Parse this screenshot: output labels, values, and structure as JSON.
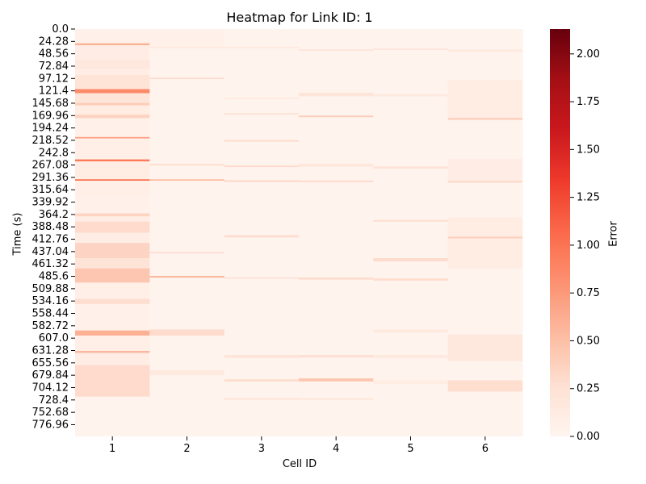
{
  "chart_data": {
    "type": "heatmap",
    "title": "Heatmap for Link ID: 1",
    "xlabel": "Cell ID",
    "ylabel": "Time (s)",
    "colorbar_label": "Error",
    "colormap": "Reds",
    "color_low": "#fff5f0",
    "color_high": "#67000d",
    "vmin": 0.0,
    "vmax": 2.13,
    "colorbar_ticks": [
      "0.00",
      "0.25",
      "0.50",
      "0.75",
      "1.00",
      "1.25",
      "1.50",
      "1.75",
      "2.00"
    ],
    "colorbar_tick_values": [
      0.0,
      0.25,
      0.5,
      0.75,
      1.0,
      1.25,
      1.5,
      1.75,
      2.0
    ],
    "x_categories": [
      "1",
      "2",
      "3",
      "4",
      "5",
      "6"
    ],
    "y_range": [
      0,
      800
    ],
    "y_ticks": [
      "0.0",
      "24.28",
      "48.56",
      "72.84",
      "97.12",
      "121.4",
      "145.68",
      "169.96",
      "194.24",
      "218.52",
      "242.8",
      "267.08",
      "291.36",
      "315.64",
      "339.92",
      "364.2",
      "388.48",
      "412.76",
      "437.04",
      "461.32",
      "485.6",
      "509.88",
      "534.16",
      "558.44",
      "582.72",
      "607.0",
      "631.28",
      "655.56",
      "679.84",
      "704.12",
      "728.4",
      "752.68",
      "776.96"
    ],
    "y_tick_values": [
      0.0,
      24.28,
      48.56,
      72.84,
      97.12,
      121.4,
      145.68,
      169.96,
      194.24,
      218.52,
      242.8,
      267.08,
      291.36,
      315.64,
      339.92,
      364.2,
      388.48,
      412.76,
      437.04,
      461.32,
      485.6,
      509.88,
      534.16,
      558.44,
      582.72,
      607.0,
      631.28,
      655.56,
      679.84,
      704.12,
      728.4,
      752.68,
      776.96
    ],
    "background_value": 0.03,
    "bands": [
      {
        "cell": 1,
        "t0": 0,
        "t1": 28,
        "v": 0.06
      },
      {
        "cell": 1,
        "t0": 28,
        "t1": 32,
        "v": 0.6
      },
      {
        "cell": 1,
        "t0": 32,
        "t1": 60,
        "v": 0.1
      },
      {
        "cell": 1,
        "t0": 60,
        "t1": 78,
        "v": 0.18
      },
      {
        "cell": 1,
        "t0": 78,
        "t1": 90,
        "v": 0.1
      },
      {
        "cell": 1,
        "t0": 90,
        "t1": 118,
        "v": 0.22
      },
      {
        "cell": 1,
        "t0": 118,
        "t1": 126,
        "v": 0.85
      },
      {
        "cell": 1,
        "t0": 126,
        "t1": 145,
        "v": 0.2
      },
      {
        "cell": 1,
        "t0": 145,
        "t1": 150,
        "v": 0.4
      },
      {
        "cell": 1,
        "t0": 150,
        "t1": 168,
        "v": 0.12
      },
      {
        "cell": 1,
        "t0": 168,
        "t1": 175,
        "v": 0.35
      },
      {
        "cell": 1,
        "t0": 175,
        "t1": 212,
        "v": 0.06
      },
      {
        "cell": 1,
        "t0": 212,
        "t1": 215,
        "v": 0.7
      },
      {
        "cell": 1,
        "t0": 215,
        "t1": 256,
        "v": 0.08
      },
      {
        "cell": 1,
        "t0": 256,
        "t1": 260,
        "v": 0.95
      },
      {
        "cell": 1,
        "t0": 260,
        "t1": 295,
        "v": 0.12
      },
      {
        "cell": 1,
        "t0": 295,
        "t1": 298,
        "v": 1.0
      },
      {
        "cell": 1,
        "t0": 298,
        "t1": 330,
        "v": 0.08
      },
      {
        "cell": 1,
        "t0": 330,
        "t1": 362,
        "v": 0.05
      },
      {
        "cell": 1,
        "t0": 362,
        "t1": 368,
        "v": 0.35
      },
      {
        "cell": 1,
        "t0": 368,
        "t1": 378,
        "v": 0.1
      },
      {
        "cell": 1,
        "t0": 378,
        "t1": 400,
        "v": 0.3
      },
      {
        "cell": 1,
        "t0": 400,
        "t1": 420,
        "v": 0.1
      },
      {
        "cell": 1,
        "t0": 420,
        "t1": 450,
        "v": 0.35
      },
      {
        "cell": 1,
        "t0": 450,
        "t1": 470,
        "v": 0.22
      },
      {
        "cell": 1,
        "t0": 470,
        "t1": 498,
        "v": 0.45
      },
      {
        "cell": 1,
        "t0": 498,
        "t1": 530,
        "v": 0.08
      },
      {
        "cell": 1,
        "t0": 530,
        "t1": 540,
        "v": 0.28
      },
      {
        "cell": 1,
        "t0": 540,
        "t1": 592,
        "v": 0.05
      },
      {
        "cell": 1,
        "t0": 592,
        "t1": 602,
        "v": 0.6
      },
      {
        "cell": 1,
        "t0": 602,
        "t1": 632,
        "v": 0.08
      },
      {
        "cell": 1,
        "t0": 632,
        "t1": 636,
        "v": 0.55
      },
      {
        "cell": 1,
        "t0": 636,
        "t1": 660,
        "v": 0.1
      },
      {
        "cell": 1,
        "t0": 660,
        "t1": 722,
        "v": 0.3
      },
      {
        "cell": 1,
        "t0": 722,
        "t1": 800,
        "v": 0.02
      },
      {
        "cell": 2,
        "t0": 0,
        "t1": 35,
        "v": 0.05
      },
      {
        "cell": 2,
        "t0": 35,
        "t1": 37,
        "v": 0.2
      },
      {
        "cell": 2,
        "t0": 96,
        "t1": 98,
        "v": 0.35
      },
      {
        "cell": 2,
        "t0": 265,
        "t1": 268,
        "v": 0.3
      },
      {
        "cell": 2,
        "t0": 295,
        "t1": 298,
        "v": 0.5
      },
      {
        "cell": 2,
        "t0": 438,
        "t1": 440,
        "v": 0.35
      },
      {
        "cell": 2,
        "t0": 485,
        "t1": 488,
        "v": 0.6
      },
      {
        "cell": 2,
        "t0": 590,
        "t1": 602,
        "v": 0.3
      },
      {
        "cell": 2,
        "t0": 670,
        "t1": 680,
        "v": 0.15
      },
      {
        "cell": 3,
        "t0": 35,
        "t1": 37,
        "v": 0.2
      },
      {
        "cell": 3,
        "t0": 135,
        "t1": 137,
        "v": 0.2
      },
      {
        "cell": 3,
        "t0": 165,
        "t1": 168,
        "v": 0.25
      },
      {
        "cell": 3,
        "t0": 218,
        "t1": 221,
        "v": 0.3
      },
      {
        "cell": 3,
        "t0": 268,
        "t1": 271,
        "v": 0.3
      },
      {
        "cell": 3,
        "t0": 297,
        "t1": 300,
        "v": 0.35
      },
      {
        "cell": 3,
        "t0": 405,
        "t1": 409,
        "v": 0.3
      },
      {
        "cell": 3,
        "t0": 488,
        "t1": 490,
        "v": 0.3
      },
      {
        "cell": 3,
        "t0": 640,
        "t1": 646,
        "v": 0.2
      },
      {
        "cell": 3,
        "t0": 688,
        "t1": 692,
        "v": 0.3
      },
      {
        "cell": 3,
        "t0": 725,
        "t1": 728,
        "v": 0.25
      },
      {
        "cell": 4,
        "t0": 40,
        "t1": 43,
        "v": 0.2
      },
      {
        "cell": 4,
        "t0": 125,
        "t1": 132,
        "v": 0.2
      },
      {
        "cell": 4,
        "t0": 170,
        "t1": 173,
        "v": 0.4
      },
      {
        "cell": 4,
        "t0": 265,
        "t1": 270,
        "v": 0.2
      },
      {
        "cell": 4,
        "t0": 298,
        "t1": 300,
        "v": 0.4
      },
      {
        "cell": 4,
        "t0": 488,
        "t1": 492,
        "v": 0.3
      },
      {
        "cell": 4,
        "t0": 640,
        "t1": 645,
        "v": 0.25
      },
      {
        "cell": 4,
        "t0": 686,
        "t1": 692,
        "v": 0.45
      },
      {
        "cell": 4,
        "t0": 725,
        "t1": 728,
        "v": 0.2
      },
      {
        "cell": 5,
        "t0": 38,
        "t1": 41,
        "v": 0.2
      },
      {
        "cell": 5,
        "t0": 128,
        "t1": 132,
        "v": 0.15
      },
      {
        "cell": 5,
        "t0": 270,
        "t1": 274,
        "v": 0.25
      },
      {
        "cell": 5,
        "t0": 375,
        "t1": 378,
        "v": 0.3
      },
      {
        "cell": 5,
        "t0": 450,
        "t1": 456,
        "v": 0.3
      },
      {
        "cell": 5,
        "t0": 490,
        "t1": 494,
        "v": 0.3
      },
      {
        "cell": 5,
        "t0": 590,
        "t1": 596,
        "v": 0.15
      },
      {
        "cell": 5,
        "t0": 640,
        "t1": 646,
        "v": 0.15
      },
      {
        "cell": 5,
        "t0": 690,
        "t1": 697,
        "v": 0.12
      },
      {
        "cell": 6,
        "t0": 40,
        "t1": 45,
        "v": 0.15
      },
      {
        "cell": 6,
        "t0": 100,
        "t1": 178,
        "v": 0.12
      },
      {
        "cell": 6,
        "t0": 175,
        "t1": 178,
        "v": 0.45
      },
      {
        "cell": 6,
        "t0": 255,
        "t1": 300,
        "v": 0.1
      },
      {
        "cell": 6,
        "t0": 298,
        "t1": 302,
        "v": 0.3
      },
      {
        "cell": 6,
        "t0": 370,
        "t1": 470,
        "v": 0.12
      },
      {
        "cell": 6,
        "t0": 408,
        "t1": 411,
        "v": 0.4
      },
      {
        "cell": 6,
        "t0": 600,
        "t1": 652,
        "v": 0.18
      },
      {
        "cell": 6,
        "t0": 690,
        "t1": 712,
        "v": 0.28
      }
    ]
  }
}
